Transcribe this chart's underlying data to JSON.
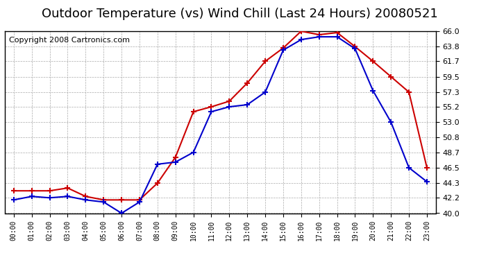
{
  "title": "Outdoor Temperature (vs) Wind Chill (Last 24 Hours) 20080521",
  "copyright": "Copyright 2008 Cartronics.com",
  "hours": [
    "00:00",
    "01:00",
    "02:00",
    "03:00",
    "04:00",
    "05:00",
    "06:00",
    "07:00",
    "08:00",
    "09:00",
    "10:00",
    "11:00",
    "12:00",
    "13:00",
    "14:00",
    "15:00",
    "16:00",
    "17:00",
    "18:00",
    "19:00",
    "20:00",
    "21:00",
    "22:00",
    "23:00"
  ],
  "temp": [
    43.2,
    43.2,
    43.2,
    43.6,
    42.4,
    41.9,
    41.9,
    41.9,
    44.3,
    48.0,
    54.5,
    55.2,
    56.0,
    58.6,
    61.7,
    63.6,
    66.0,
    65.5,
    65.8,
    63.8,
    61.7,
    59.5,
    57.3,
    46.5
  ],
  "windchill": [
    41.9,
    42.4,
    42.2,
    42.4,
    41.9,
    41.6,
    40.0,
    41.6,
    47.0,
    47.3,
    48.7,
    54.5,
    55.2,
    55.5,
    57.3,
    63.3,
    64.8,
    65.2,
    65.2,
    63.5,
    57.5,
    53.0,
    46.5,
    44.5
  ],
  "ylim": [
    40.0,
    66.0
  ],
  "yticks": [
    40.0,
    42.2,
    44.3,
    46.5,
    48.7,
    50.8,
    53.0,
    55.2,
    57.3,
    59.5,
    61.7,
    63.8,
    66.0
  ],
  "temp_color": "#cc0000",
  "windchill_color": "#0000cc",
  "bg_color": "#ffffff",
  "plot_bg_color": "#ffffff",
  "grid_color": "#aaaaaa",
  "title_fontsize": 13,
  "copyright_fontsize": 8
}
